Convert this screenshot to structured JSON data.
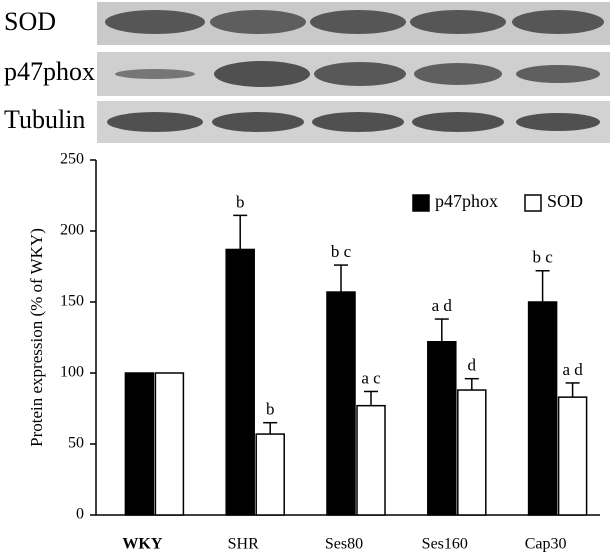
{
  "chart_data": {
    "type": "bar",
    "blot_labels": [
      "SOD",
      "p47phox",
      "Tubulin"
    ],
    "y_label": "Protein expression (% of WKY)",
    "categories": [
      "WKY",
      "SHR",
      "Ses80",
      "Ses160",
      "Cap30"
    ],
    "series": [
      {
        "name": "p47phox",
        "color": "#000000",
        "values": [
          100,
          187,
          157,
          122,
          150
        ],
        "errors": [
          0,
          24,
          19,
          16,
          22
        ],
        "annotations": [
          null,
          "b",
          "b c",
          "a d",
          "b c"
        ]
      },
      {
        "name": "SOD",
        "color": "#ffffff",
        "values": [
          100,
          57,
          77,
          88,
          83
        ],
        "errors": [
          0,
          8,
          10,
          8,
          10
        ],
        "annotations": [
          null,
          "b",
          "a c",
          "d",
          "a d"
        ]
      }
    ],
    "ylim": [
      0,
      250
    ],
    "yticks": [
      0,
      50,
      100,
      150,
      200,
      250
    ],
    "legend": "upper right"
  }
}
